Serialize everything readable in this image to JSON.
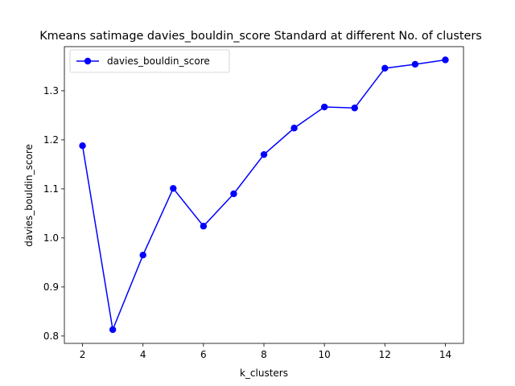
{
  "chart_data": {
    "type": "line",
    "title": "Kmeans satimage davies_bouldin_score Standard at different No. of clusters",
    "xlabel": "k_clusters",
    "ylabel": "davies_bouldin_score",
    "xlim": [
      1.4,
      14.6
    ],
    "ylim": [
      0.785,
      1.39
    ],
    "xticks": [
      2,
      4,
      6,
      8,
      10,
      12,
      14
    ],
    "xtick_labels": [
      "2",
      "4",
      "6",
      "8",
      "10",
      "12",
      "14"
    ],
    "yticks": [
      0.8,
      0.9,
      1.0,
      1.1,
      1.2,
      1.3
    ],
    "ytick_labels": [
      "0.8",
      "0.9",
      "1.0",
      "1.1",
      "1.2",
      "1.3"
    ],
    "grid": false,
    "legend_position": "upper-left",
    "series": [
      {
        "name": "davies_bouldin_score",
        "color": "#0000ff",
        "marker": "circle",
        "x": [
          2,
          3,
          4,
          5,
          6,
          7,
          8,
          9,
          10,
          11,
          12,
          13,
          14
        ],
        "y": [
          1.188,
          0.813,
          0.965,
          1.101,
          1.024,
          1.09,
          1.17,
          1.224,
          1.267,
          1.265,
          1.346,
          1.354,
          1.363
        ]
      }
    ]
  }
}
